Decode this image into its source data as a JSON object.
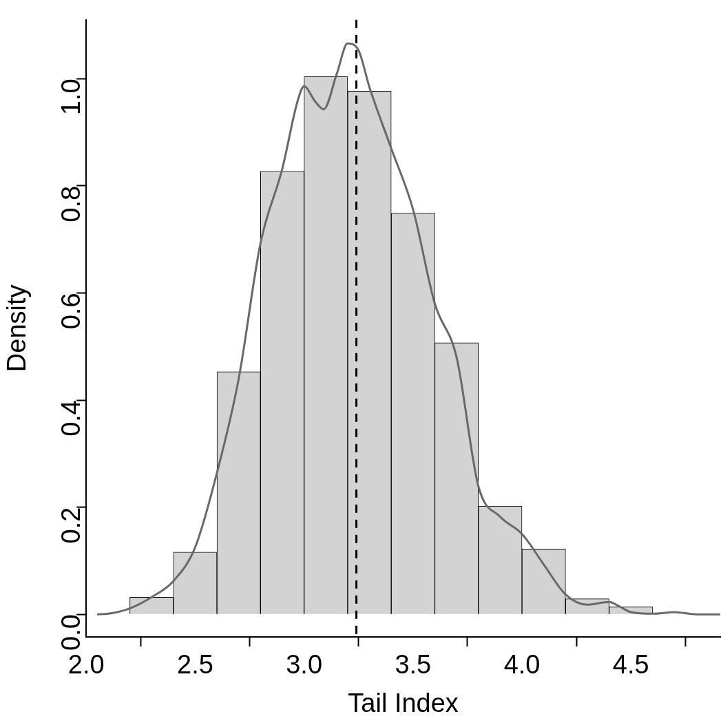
{
  "chart_data": {
    "type": "histogram",
    "xlabel": "Tail Index",
    "ylabel": "Density",
    "bins": [
      2.2,
      2.4,
      2.6,
      2.8,
      3.0,
      3.2,
      3.4,
      3.6,
      3.8,
      4.0,
      4.2,
      4.4,
      4.6
    ],
    "values": [
      0.032,
      0.116,
      0.453,
      0.827,
      1.004,
      0.977,
      0.749,
      0.507,
      0.202,
      0.122,
      0.029,
      0.014
    ],
    "color": "#d3d3d3",
    "series": [
      {
        "type": "line",
        "color": "#696969",
        "x": [
          2.05,
          2.1,
          2.2,
          2.3,
          2.4,
          2.5,
          2.6,
          2.7,
          2.8,
          2.9,
          2.97,
          3.0,
          3.05,
          3.09,
          3.15,
          3.2,
          3.25,
          3.3,
          3.4,
          3.5,
          3.6,
          3.7,
          3.8,
          3.9,
          4.0,
          4.1,
          4.2,
          4.3,
          4.4,
          4.45,
          4.5,
          4.6,
          4.7,
          4.8,
          4.91
        ],
        "values": [
          0,
          0.001,
          0.011,
          0.032,
          0.062,
          0.125,
          0.264,
          0.44,
          0.693,
          0.832,
          0.958,
          0.986,
          0.958,
          0.943,
          1.009,
          1.066,
          1.053,
          0.984,
          0.87,
          0.756,
          0.58,
          0.48,
          0.239,
          0.182,
          0.15,
          0.093,
          0.037,
          0.018,
          0.023,
          0.014,
          0.004,
          0.001,
          0.004,
          0,
          0
        ]
      }
    ],
    "ref_lines": [
      {
        "axis": "x",
        "value": 3.24,
        "color": "#000000",
        "line_style": "dashed"
      }
    ],
    "xlim": [
      2.0,
      4.91
    ],
    "ylim": [
      -0.042,
      1.11
    ],
    "xticks": [
      {
        "value": 2,
        "label": "2.0"
      },
      2.5,
      {
        "value": 3,
        "label": "3.0"
      },
      3.5,
      {
        "value": 4,
        "label": "4.0"
      },
      4.5
    ],
    "yticks": [
      {
        "value": 0,
        "label": "0.0"
      },
      0.2,
      0.4,
      0.6,
      0.8,
      {
        "value": 1,
        "label": "1.0"
      }
    ],
    "grid": false,
    "legend": false
  }
}
